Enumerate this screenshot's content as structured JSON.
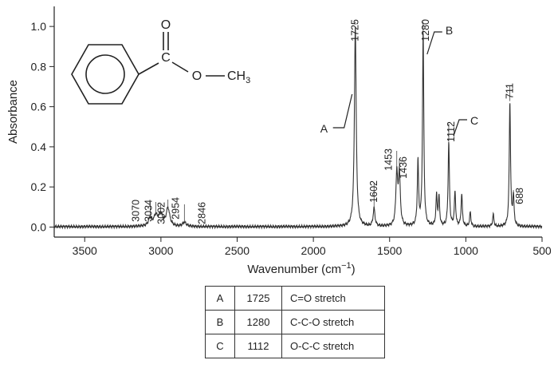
{
  "chart_data": {
    "type": "line",
    "title": "",
    "xlabel": "Wavenumber (cm",
    "xlabel_sup": "−1",
    "xlabel_close": ")",
    "ylabel": "Absorbance",
    "xlim": [
      3700,
      500
    ],
    "ylim": [
      -0.05,
      1.1
    ],
    "x_reversed": true,
    "x_ticks": [
      3500,
      3000,
      2500,
      2000,
      1500,
      1000,
      500
    ],
    "y_ticks": [
      "0.0",
      "0.2",
      "0.4",
      "0.6",
      "0.8",
      "1.0"
    ],
    "grid": false,
    "series": [
      {
        "peaks": [
          {
            "x": 3070,
            "y": 0.04
          },
          {
            "x": 3034,
            "y": 0.05
          },
          {
            "x": 3002,
            "y": 0.06
          },
          {
            "x": 2954,
            "y": 0.09
          },
          {
            "x": 2846,
            "y": 0.02
          },
          {
            "x": 1725,
            "y": 1.0
          },
          {
            "x": 1602,
            "y": 0.09
          },
          {
            "x": 1453,
            "y": 0.26
          },
          {
            "x": 1436,
            "y": 0.26
          },
          {
            "x": 1314,
            "y": 0.32
          },
          {
            "x": 1280,
            "y": 0.97
          },
          {
            "x": 1192,
            "y": 0.15
          },
          {
            "x": 1176,
            "y": 0.14
          },
          {
            "x": 1112,
            "y": 0.42
          },
          {
            "x": 1071,
            "y": 0.17
          },
          {
            "x": 1027,
            "y": 0.16
          },
          {
            "x": 971,
            "y": 0.07
          },
          {
            "x": 820,
            "y": 0.06
          },
          {
            "x": 711,
            "y": 0.62
          },
          {
            "x": 688,
            "y": 0.15
          }
        ]
      }
    ],
    "peak_labels": [
      "3070",
      "3034",
      "3002",
      "2954",
      "2846",
      "1725",
      "1602",
      "1453",
      "1436",
      "1280",
      "1112",
      "711",
      "688"
    ],
    "annotations": [
      {
        "letter": "A",
        "x": 1725
      },
      {
        "letter": "B",
        "x": 1280
      },
      {
        "letter": "C",
        "x": 1112
      }
    ]
  },
  "molecule": {
    "carbonyl_o": "O",
    "carbon": "C",
    "ester_o": "O",
    "methyl": "CH",
    "methyl_sub": "3"
  },
  "table": {
    "rows": [
      {
        "label": "A",
        "wavenumber": "1725",
        "assignment": "C=O stretch"
      },
      {
        "label": "B",
        "wavenumber": "1280",
        "assignment": "C-C-O stretch"
      },
      {
        "label": "C",
        "wavenumber": "1112",
        "assignment": "O-C-C stretch"
      }
    ]
  }
}
